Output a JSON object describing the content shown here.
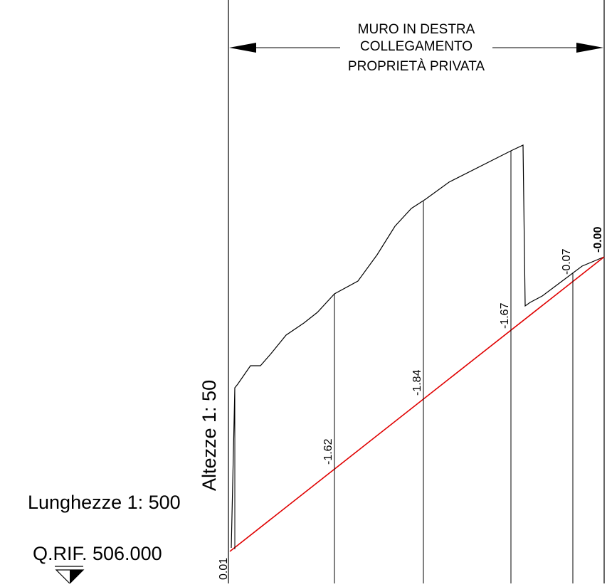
{
  "header": {
    "line1": "MURO IN DESTRA",
    "line2": "COLLEGAMENTO",
    "line3": "PROPRIETÀ PRIVATA"
  },
  "scales": {
    "vertical": "Altezze 1: 50",
    "horizontal": "Lunghezze 1: 500"
  },
  "reference": {
    "label": "Q.RIF. 506.000"
  },
  "profile": {
    "values": [
      "0.01",
      "-1.62",
      "-1.84",
      "-1.67",
      "-0.07",
      "-0.00"
    ],
    "design_line_color": "#e00000",
    "terrain_color": "#000000"
  },
  "icons": {
    "reference_marker": "triangle-level-marker-icon",
    "dimension_arrows": "arrowhead-icon"
  }
}
